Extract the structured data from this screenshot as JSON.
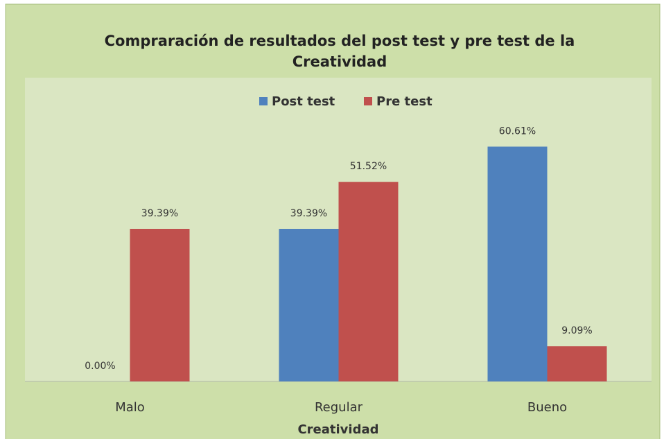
{
  "chart_data": {
    "type": "bar",
    "title": "Compraración de resultados del post test y pre test  de la Creatividad",
    "xlabel": "Creatividad",
    "categories": [
      "Malo",
      "Regular",
      "Bueno"
    ],
    "series": [
      {
        "name": "Post test",
        "color": "#4f81bd",
        "values": [
          0,
          39.39,
          60.61
        ],
        "value_labels": [
          "0.00%",
          "39.39%",
          "60.61%"
        ]
      },
      {
        "name": "Pre test",
        "color": "#c0504d",
        "values": [
          39.39,
          51.52,
          9.09
        ],
        "value_labels": [
          "39.39%",
          "51.52%",
          "9.09%"
        ]
      }
    ],
    "ylim": [
      0,
      70
    ],
    "legend": "top"
  }
}
